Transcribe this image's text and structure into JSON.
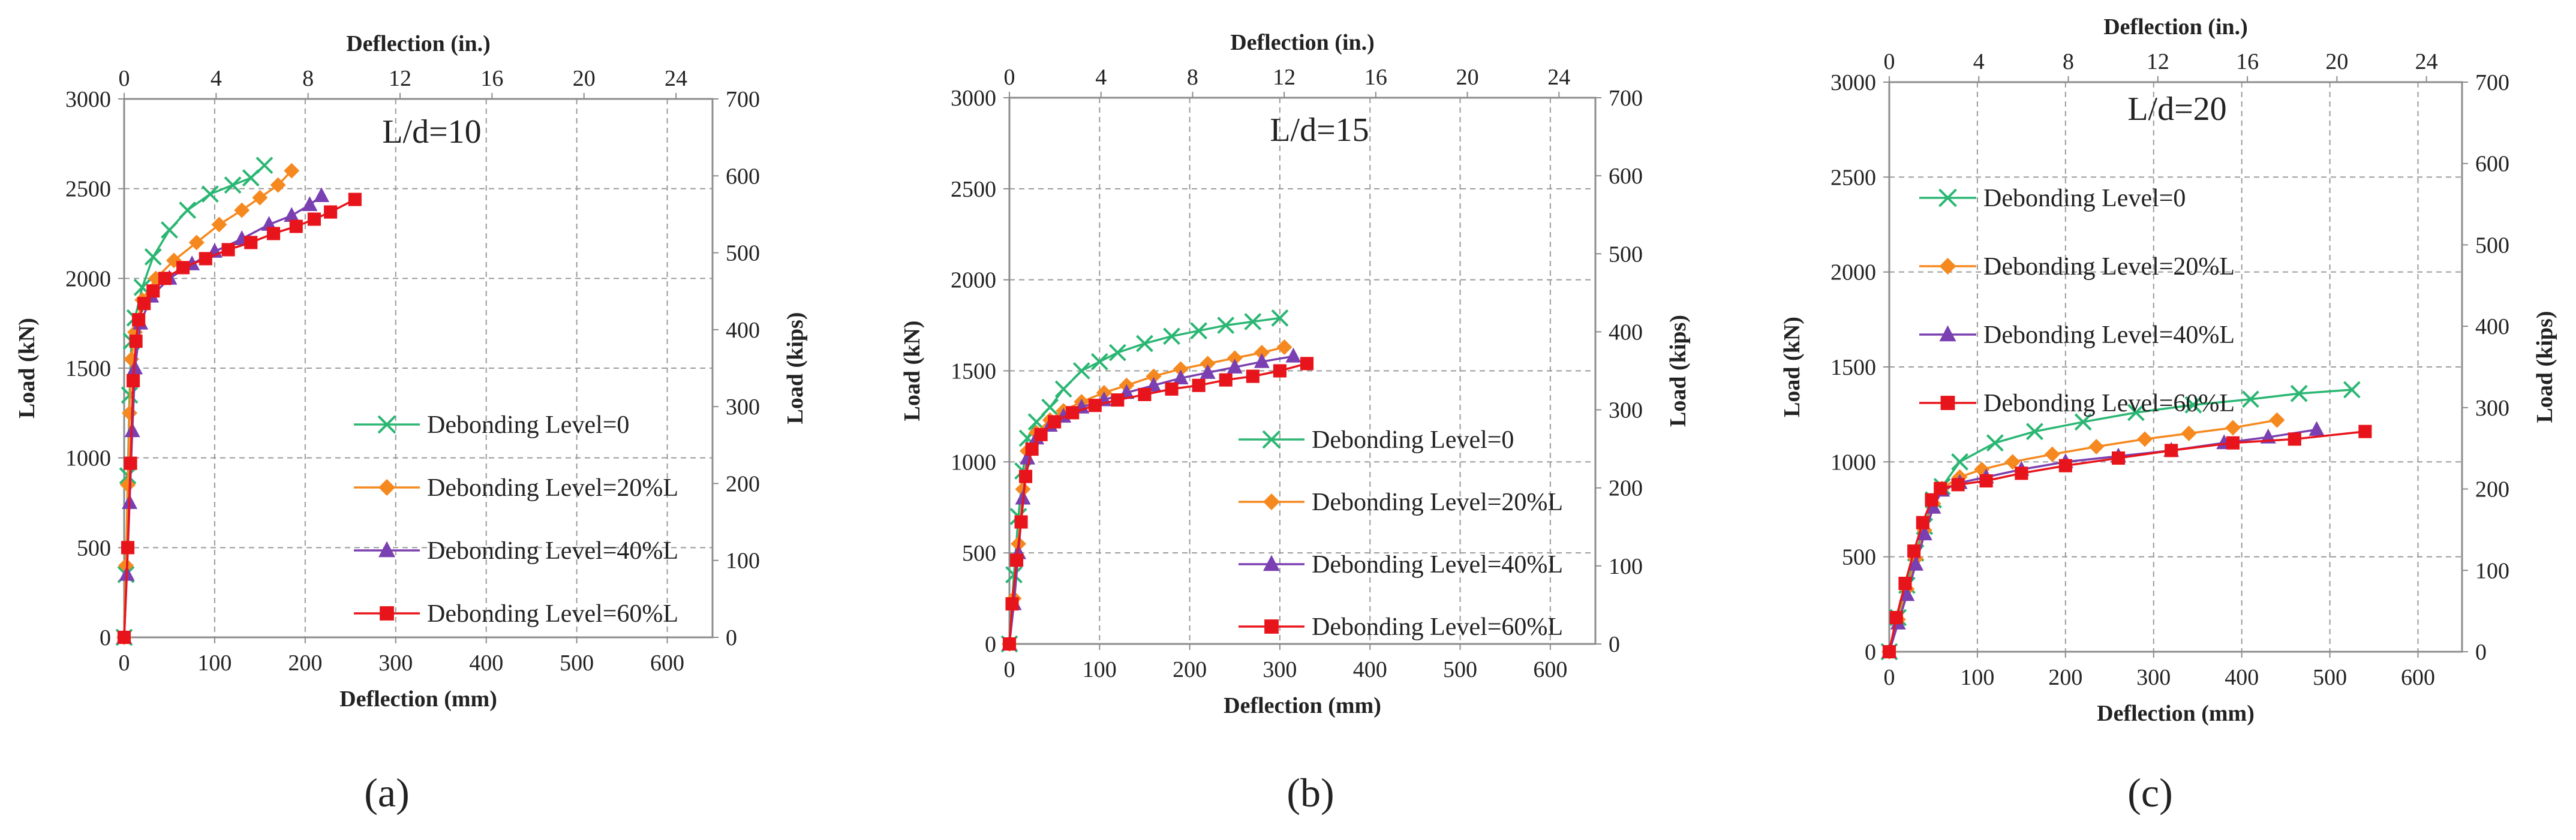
{
  "colors": {
    "dl0": "#2bb673",
    "dl20": "#f5891f",
    "dl40": "#7a3fb0",
    "dl60": "#e8141b",
    "axis": "#8c8c8c",
    "grid": "#9a9a9a",
    "text": "#222222"
  },
  "chart_data": [
    {
      "type": "line",
      "panel_label": "(a)",
      "title": "L/d=10",
      "xlabel": "Deflection (mm)",
      "ylabel": "Load (kN)",
      "x2label": "Deflection (in.)",
      "y2label": "Load (kips)",
      "xlim": [
        0,
        650
      ],
      "ylim": [
        0,
        3000
      ],
      "x2lim": [
        0,
        25.59
      ],
      "y2lim": [
        0,
        700
      ],
      "xticks": [
        "0",
        "100",
        "200",
        "300",
        "400",
        "500",
        "600"
      ],
      "yticks": [
        "0",
        "500",
        "1000",
        "1500",
        "2000",
        "2500",
        "3000"
      ],
      "x2ticks": [
        "0",
        "4",
        "8",
        "12",
        "16",
        "20",
        "24"
      ],
      "y2ticks": [
        "0",
        "100",
        "200",
        "300",
        "400",
        "500",
        "600",
        "700"
      ],
      "grid": true,
      "legend_position": "center-right",
      "series": [
        {
          "name": "Debonding Level=0",
          "marker": "x",
          "x": [
            0,
            2,
            4,
            6,
            8,
            12,
            20,
            32,
            50,
            70,
            95,
            120,
            140,
            155
          ],
          "y": [
            0,
            350,
            900,
            1350,
            1650,
            1780,
            1950,
            2120,
            2270,
            2380,
            2470,
            2520,
            2560,
            2630
          ]
        },
        {
          "name": "Debonding Level=20%L",
          "marker": "diamond",
          "x": [
            0,
            2,
            4,
            6,
            8,
            12,
            20,
            35,
            55,
            80,
            105,
            130,
            150,
            170,
            185
          ],
          "y": [
            0,
            400,
            850,
            1250,
            1550,
            1700,
            1880,
            2000,
            2100,
            2200,
            2300,
            2380,
            2450,
            2520,
            2600
          ]
        },
        {
          "name": "Debonding Level=40%L",
          "marker": "triangle",
          "x": [
            0,
            3,
            6,
            9,
            12,
            18,
            30,
            50,
            75,
            100,
            130,
            160,
            185,
            205,
            218
          ],
          "y": [
            0,
            350,
            750,
            1150,
            1500,
            1750,
            1900,
            2000,
            2080,
            2150,
            2220,
            2300,
            2350,
            2410,
            2460
          ]
        },
        {
          "name": "Debonding Level=60%L",
          "marker": "square",
          "x": [
            0,
            4,
            7,
            10,
            13,
            16,
            22,
            32,
            45,
            65,
            90,
            115,
            140,
            165,
            190,
            210,
            228,
            255
          ],
          "y": [
            0,
            500,
            970,
            1430,
            1650,
            1770,
            1860,
            1930,
            2000,
            2060,
            2110,
            2160,
            2200,
            2250,
            2290,
            2330,
            2370,
            2440
          ]
        }
      ]
    },
    {
      "type": "line",
      "panel_label": "(b)",
      "title": "L/d=15",
      "xlabel": "Deflection (mm)",
      "ylabel": "Load (kN)",
      "x2label": "Deflection (in.)",
      "y2label": "Load (kips)",
      "xlim": [
        0,
        650
      ],
      "ylim": [
        0,
        3000
      ],
      "x2lim": [
        0,
        25.59
      ],
      "y2lim": [
        0,
        700
      ],
      "xticks": [
        "0",
        "100",
        "200",
        "300",
        "400",
        "500",
        "600"
      ],
      "yticks": [
        "0",
        "500",
        "1000",
        "1500",
        "2000",
        "2500",
        "3000"
      ],
      "x2ticks": [
        "0",
        "4",
        "8",
        "12",
        "16",
        "20",
        "24"
      ],
      "y2ticks": [
        "0",
        "100",
        "200",
        "300",
        "400",
        "500",
        "600",
        "700"
      ],
      "grid": true,
      "legend_position": "bottom-right",
      "series": [
        {
          "name": "Debonding Level=0",
          "marker": "x",
          "x": [
            0,
            5,
            10,
            15,
            20,
            30,
            45,
            60,
            80,
            100,
            120,
            150,
            180,
            210,
            240,
            270,
            300
          ],
          "y": [
            0,
            380,
            700,
            950,
            1130,
            1220,
            1300,
            1400,
            1500,
            1550,
            1600,
            1650,
            1690,
            1720,
            1750,
            1770,
            1790
          ]
        },
        {
          "name": "Debonding Level=20%L",
          "marker": "diamond",
          "x": [
            0,
            5,
            10,
            15,
            20,
            30,
            45,
            60,
            80,
            105,
            130,
            160,
            190,
            220,
            250,
            280,
            305
          ],
          "y": [
            0,
            250,
            550,
            850,
            1060,
            1160,
            1230,
            1280,
            1330,
            1380,
            1420,
            1470,
            1510,
            1540,
            1570,
            1600,
            1630
          ]
        },
        {
          "name": "Debonding Level=40%L",
          "marker": "triangle",
          "x": [
            0,
            5,
            10,
            15,
            20,
            30,
            45,
            60,
            80,
            105,
            130,
            160,
            190,
            220,
            250,
            280,
            315
          ],
          "y": [
            0,
            220,
            500,
            800,
            1020,
            1130,
            1200,
            1250,
            1300,
            1340,
            1380,
            1420,
            1460,
            1490,
            1520,
            1550,
            1580
          ]
        },
        {
          "name": "Debonding Level=60%L",
          "marker": "square",
          "x": [
            0,
            3,
            8,
            13,
            18,
            25,
            35,
            50,
            70,
            95,
            120,
            150,
            180,
            210,
            240,
            270,
            300,
            330
          ],
          "y": [
            0,
            220,
            460,
            670,
            920,
            1070,
            1150,
            1220,
            1270,
            1310,
            1340,
            1370,
            1400,
            1420,
            1450,
            1470,
            1500,
            1540
          ]
        }
      ]
    },
    {
      "type": "line",
      "panel_label": "(c)",
      "title": "L/d=20",
      "xlabel": "Deflection (mm)",
      "ylabel": "Load (kN)",
      "x2label": "Deflection (in.)",
      "y2label": "Load (kips)",
      "xlim": [
        0,
        650
      ],
      "ylim": [
        0,
        3000
      ],
      "x2lim": [
        0,
        25.59
      ],
      "y2lim": [
        0,
        700
      ],
      "xticks": [
        "0",
        "100",
        "200",
        "300",
        "400",
        "500",
        "600"
      ],
      "yticks": [
        "0",
        "500",
        "1000",
        "1500",
        "2000",
        "2500",
        "3000"
      ],
      "x2ticks": [
        "0",
        "4",
        "8",
        "12",
        "16",
        "20",
        "24"
      ],
      "y2ticks": [
        "0",
        "100",
        "200",
        "300",
        "400",
        "500",
        "600",
        "700"
      ],
      "grid": true,
      "legend_position": "top-left",
      "series": [
        {
          "name": "Debonding Level=0",
          "marker": "x",
          "x": [
            0,
            10,
            20,
            30,
            40,
            50,
            60,
            80,
            120,
            165,
            220,
            280,
            345,
            410,
            465,
            525
          ],
          "y": [
            0,
            180,
            350,
            520,
            660,
            800,
            870,
            1000,
            1100,
            1160,
            1210,
            1260,
            1300,
            1330,
            1360,
            1380
          ]
        },
        {
          "name": "Debonding Level=20%L",
          "marker": "diamond",
          "x": [
            0,
            10,
            20,
            30,
            40,
            50,
            60,
            80,
            105,
            140,
            185,
            235,
            290,
            340,
            390,
            440
          ],
          "y": [
            0,
            170,
            330,
            490,
            640,
            780,
            860,
            920,
            960,
            1000,
            1040,
            1080,
            1120,
            1150,
            1180,
            1220
          ]
        },
        {
          "name": "Debonding Level=40%L",
          "marker": "triangle",
          "x": [
            0,
            10,
            20,
            30,
            40,
            50,
            60,
            80,
            110,
            150,
            200,
            260,
            320,
            380,
            430,
            485
          ],
          "y": [
            0,
            150,
            300,
            460,
            620,
            760,
            850,
            890,
            920,
            960,
            1000,
            1030,
            1060,
            1100,
            1130,
            1170
          ]
        },
        {
          "name": "Debonding Level=60%L",
          "marker": "square",
          "x": [
            0,
            8,
            18,
            28,
            38,
            48,
            58,
            78,
            110,
            150,
            200,
            260,
            320,
            390,
            460,
            540
          ],
          "y": [
            0,
            180,
            360,
            530,
            680,
            800,
            860,
            880,
            900,
            940,
            980,
            1020,
            1060,
            1100,
            1120,
            1160
          ]
        }
      ]
    }
  ]
}
